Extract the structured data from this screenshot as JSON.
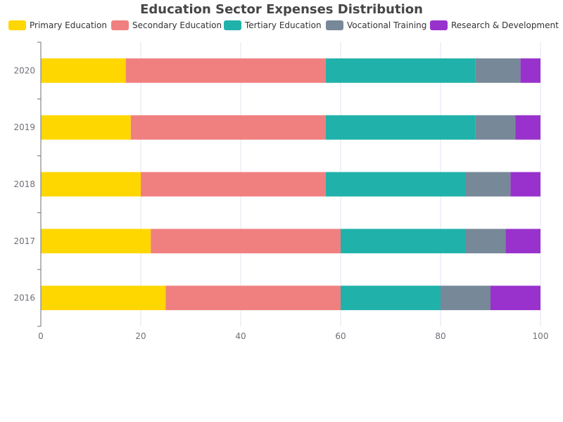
{
  "chart_data": {
    "type": "bar",
    "orientation": "horizontal",
    "stacked": true,
    "title": "Education Sector Expenses Distribution",
    "categories": [
      "2016",
      "2017",
      "2018",
      "2019",
      "2020"
    ],
    "series": [
      {
        "name": "Primary Education",
        "color": "#FFD700",
        "values": [
          25,
          22,
          20,
          18,
          17
        ]
      },
      {
        "name": "Secondary Education",
        "color": "#F08080",
        "values": [
          35,
          38,
          37,
          39,
          40
        ]
      },
      {
        "name": "Tertiary Education",
        "color": "#20B2AA",
        "values": [
          20,
          25,
          28,
          30,
          30
        ]
      },
      {
        "name": "Vocational Training",
        "color": "#778899",
        "values": [
          10,
          8,
          9,
          8,
          9
        ]
      },
      {
        "name": "Research & Development",
        "color": "#9932CC",
        "values": [
          10,
          7,
          6,
          5,
          4
        ]
      }
    ],
    "xlim": [
      0,
      100
    ],
    "xticks": [
      0,
      20,
      40,
      60,
      80,
      100
    ],
    "grid": true,
    "legend_position": "top"
  }
}
